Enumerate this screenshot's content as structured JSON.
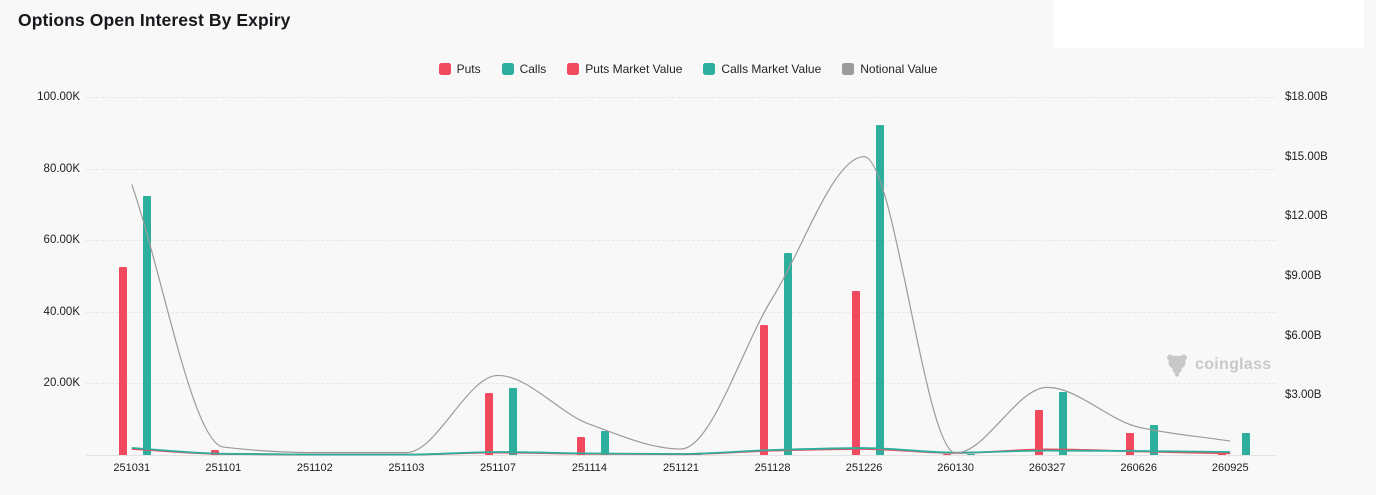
{
  "header": {
    "title": "Options Open Interest By Expiry"
  },
  "watermark": {
    "text": "coinglass"
  },
  "colors": {
    "background": "#f8f8f8",
    "overlay": "#ffffff",
    "puts_red": "#f1495e",
    "calls_teal": "#2eae9d",
    "notional_gray": "#9b9b9b",
    "grid": "#e7e7e7",
    "axis_text": "#1d1d1d",
    "watermark_gray": "#c8c8c8"
  },
  "chart_data": {
    "type": "combo",
    "title": "Options Open Interest By Expiry",
    "categories": [
      "251031",
      "251101",
      "251102",
      "251103",
      "251107",
      "251114",
      "251121",
      "251128",
      "251226",
      "260130",
      "260327",
      "260626",
      "260925"
    ],
    "series": [
      {
        "name": "Puts",
        "type": "bar",
        "yaxis": "left",
        "unit": "contracts (K)",
        "color": "#f1495e",
        "values": [
          52.5,
          1.5,
          0.2,
          0.2,
          17.3,
          5.0,
          0.2,
          36.3,
          45.8,
          0.1,
          12.6,
          6.2,
          0.9
        ]
      },
      {
        "name": "Calls",
        "type": "bar",
        "yaxis": "left",
        "unit": "contracts (K)",
        "color": "#2eae9d",
        "values": [
          72.4,
          0.7,
          0.2,
          0.2,
          18.6,
          6.7,
          0.2,
          56.3,
          92.3,
          0.1,
          17.6,
          8.3,
          6.2
        ]
      },
      {
        "name": "Puts Market Value",
        "type": "line",
        "yaxis": "right",
        "unit": "$B",
        "color": "#f1495e",
        "values": [
          0.3,
          0.05,
          0.02,
          0.02,
          0.12,
          0.06,
          0.04,
          0.22,
          0.3,
          0.1,
          0.28,
          0.18,
          0.08
        ]
      },
      {
        "name": "Calls Market Value",
        "type": "line",
        "yaxis": "right",
        "unit": "$B",
        "color": "#2eae9d",
        "values": [
          0.35,
          0.06,
          0.02,
          0.02,
          0.15,
          0.08,
          0.05,
          0.25,
          0.35,
          0.12,
          0.22,
          0.2,
          0.15
        ]
      },
      {
        "name": "Notional Value",
        "type": "line",
        "yaxis": "right",
        "unit": "$B",
        "color": "#9b9b9b",
        "values": [
          13.6,
          0.4,
          0.12,
          0.12,
          4.0,
          1.55,
          0.3,
          7.9,
          15.0,
          0.1,
          3.4,
          1.4,
          0.7
        ]
      }
    ],
    "left_axis": {
      "ticks": [
        "100.00K",
        "80.00K",
        "60.00K",
        "40.00K",
        "20.00K"
      ],
      "min": 0,
      "max": "100.00K"
    },
    "right_axis": {
      "ticks": [
        "$18.00B",
        "$15.00B",
        "$12.00B",
        "$9.00B",
        "$6.00B",
        "$3.00B"
      ],
      "min": 0,
      "max": "$18.00B"
    },
    "legend": [
      "Puts",
      "Calls",
      "Puts Market Value",
      "Calls Market Value",
      "Notional Value"
    ],
    "legend_position": "top-center",
    "grid": "horizontal-dashed"
  }
}
